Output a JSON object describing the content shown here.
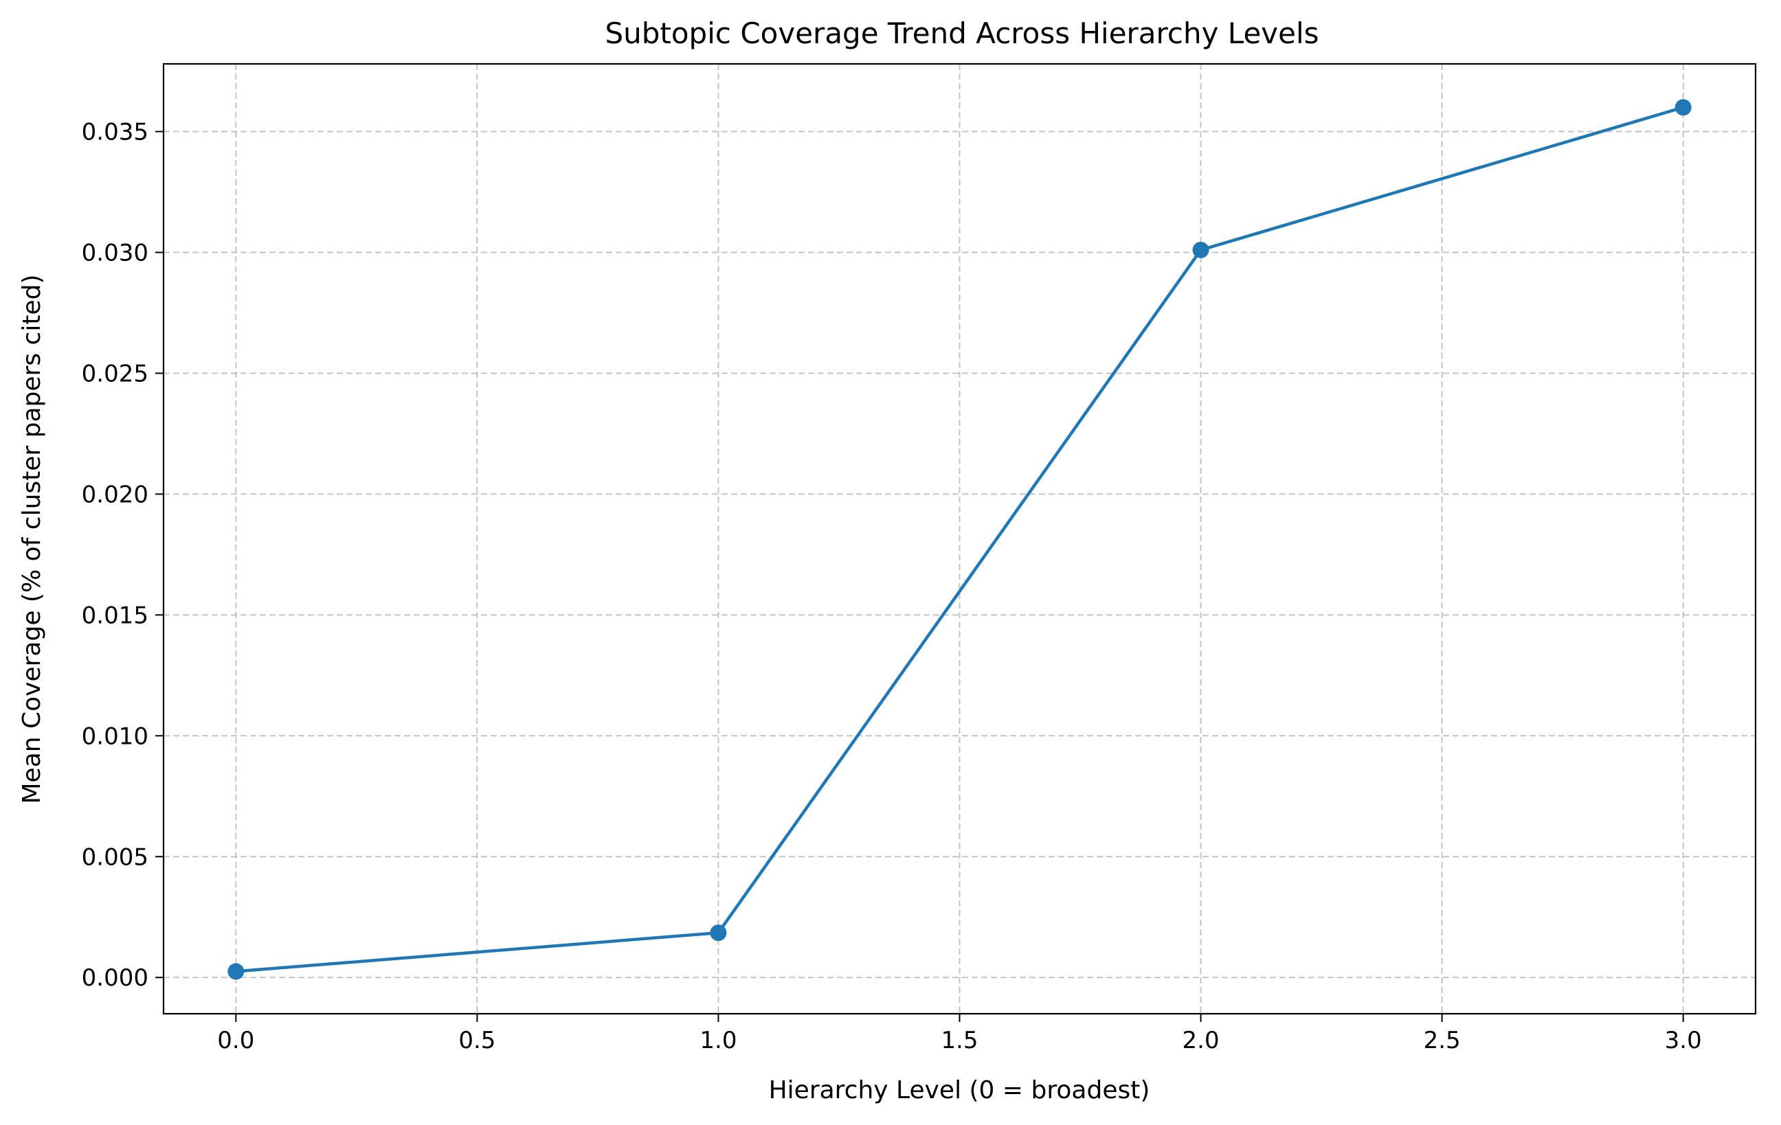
{
  "chart_data": {
    "type": "line",
    "title": "Subtopic Coverage Trend Across Hierarchy Levels",
    "xlabel": "Hierarchy Level (0 = broadest)",
    "ylabel": "Mean Coverage (% of cluster papers cited)",
    "xlim": [
      -0.15,
      3.15
    ],
    "ylim": [
      -0.0015,
      0.0378
    ],
    "x_ticks": [
      0.0,
      0.5,
      1.0,
      1.5,
      2.0,
      2.5,
      3.0
    ],
    "x_tick_labels": [
      "0.0",
      "0.5",
      "1.0",
      "1.5",
      "2.0",
      "2.5",
      "3.0"
    ],
    "y_ticks": [
      0.0,
      0.005,
      0.01,
      0.015,
      0.02,
      0.025,
      0.03,
      0.035
    ],
    "y_tick_labels": [
      "0.000",
      "0.005",
      "0.010",
      "0.015",
      "0.020",
      "0.025",
      "0.030",
      "0.035"
    ],
    "grid": true,
    "legend": false,
    "series": [
      {
        "color": "#1f77b4",
        "marker": "circle",
        "x": [
          0,
          1,
          2,
          3
        ],
        "values": [
          0.00025,
          0.00185,
          0.0301,
          0.036
        ]
      }
    ]
  }
}
